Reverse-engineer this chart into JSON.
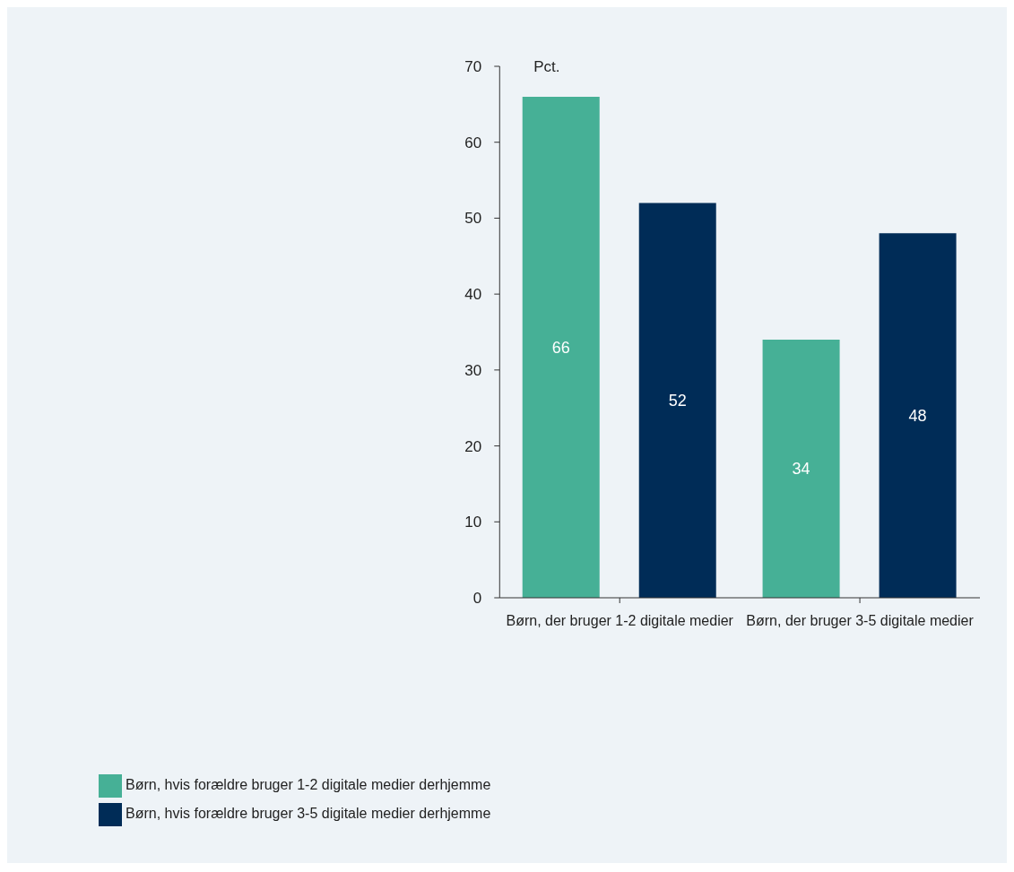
{
  "chart_data": {
    "type": "bar",
    "ylabel": "Pct.",
    "categories": [
      "Børn, der bruger 1-2 digitale medier",
      "Børn, der bruger 3-5 digitale medier"
    ],
    "series": [
      {
        "name": "Børn, hvis forældre bruger 1-2 digitale medier derhjemme",
        "color": "#46b096",
        "values": [
          66,
          34
        ]
      },
      {
        "name": "Børn, hvis forældre bruger 3-5 digitale medier derhjemme",
        "color": "#002c57",
        "values": [
          52,
          48
        ]
      }
    ],
    "ylim": [
      0,
      70
    ],
    "yticks": [
      0,
      10,
      20,
      30,
      40,
      50,
      60,
      70
    ],
    "data_labels": true,
    "grid": false,
    "legend": "bottom left"
  }
}
